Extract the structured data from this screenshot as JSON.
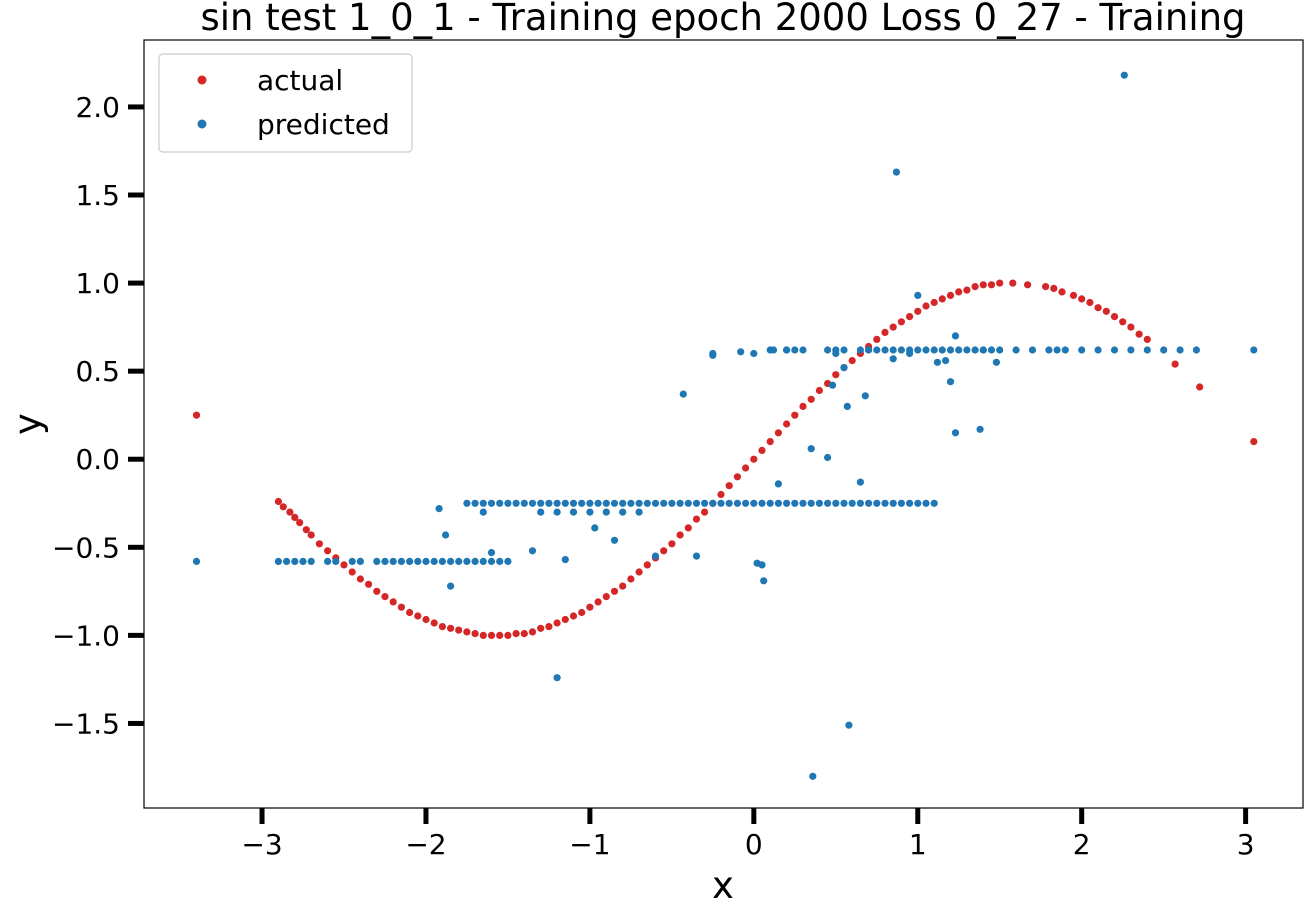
{
  "chart_data": {
    "type": "scatter",
    "title": "sin test 1_0_1 - Training epoch 2000 Loss 0_27 - Training",
    "xlabel": "x",
    "ylabel": "y",
    "xlim": [
      -3.72,
      3.35
    ],
    "ylim": [
      -1.98,
      2.38
    ],
    "xticks": [
      -3,
      -2,
      -1,
      0,
      1,
      2,
      3
    ],
    "xtick_labels": [
      "−3",
      "−2",
      "−1",
      "0",
      "1",
      "2",
      "3"
    ],
    "yticks": [
      2.0,
      1.5,
      1.0,
      0.5,
      0.0,
      -0.5,
      -1.0,
      -1.5
    ],
    "ytick_labels": [
      "2.0",
      "1.5",
      "1.0",
      "0.5",
      "0.0",
      "−0.5",
      "−1.0",
      "−1.5"
    ],
    "grid": false,
    "legend_position": "top-left",
    "series": [
      {
        "name": "actual",
        "color": "#d62728",
        "x": [
          -3.4,
          -2.9,
          -2.87,
          -2.83,
          -2.8,
          -2.77,
          -2.73,
          -2.7,
          -2.65,
          -2.6,
          -2.55,
          -2.5,
          -2.45,
          -2.4,
          -2.35,
          -2.3,
          -2.25,
          -2.2,
          -2.15,
          -2.1,
          -2.05,
          -2.0,
          -1.95,
          -1.9,
          -1.85,
          -1.8,
          -1.75,
          -1.7,
          -1.65,
          -1.6,
          -1.55,
          -1.5,
          -1.45,
          -1.4,
          -1.35,
          -1.3,
          -1.25,
          -1.2,
          -1.15,
          -1.1,
          -1.05,
          -1.0,
          -0.95,
          -0.9,
          -0.85,
          -0.8,
          -0.75,
          -0.7,
          -0.65,
          -0.6,
          -0.55,
          -0.5,
          -0.45,
          -0.4,
          -0.35,
          -0.3,
          -0.25,
          -0.2,
          -0.15,
          -0.1,
          -0.05,
          0.0,
          0.05,
          0.1,
          0.15,
          0.2,
          0.25,
          0.3,
          0.35,
          0.4,
          0.45,
          0.5,
          0.55,
          0.6,
          0.65,
          0.7,
          0.75,
          0.8,
          0.85,
          0.9,
          0.95,
          1.0,
          1.05,
          1.1,
          1.15,
          1.2,
          1.25,
          1.3,
          1.35,
          1.4,
          1.45,
          1.5,
          1.58,
          1.67,
          1.78,
          1.83,
          1.88,
          1.95,
          2.0,
          2.05,
          2.1,
          2.15,
          2.2,
          2.25,
          2.3,
          2.35,
          2.4,
          2.57,
          2.72,
          3.05
        ],
        "y": [
          0.25,
          -0.24,
          -0.27,
          -0.3,
          -0.33,
          -0.36,
          -0.4,
          -0.43,
          -0.48,
          -0.52,
          -0.56,
          -0.6,
          -0.64,
          -0.68,
          -0.71,
          -0.75,
          -0.78,
          -0.81,
          -0.84,
          -0.87,
          -0.89,
          -0.91,
          -0.93,
          -0.95,
          -0.96,
          -0.97,
          -0.98,
          -0.99,
          -1.0,
          -1.0,
          -1.0,
          -1.0,
          -0.99,
          -0.99,
          -0.98,
          -0.96,
          -0.95,
          -0.93,
          -0.91,
          -0.89,
          -0.87,
          -0.84,
          -0.81,
          -0.78,
          -0.75,
          -0.72,
          -0.68,
          -0.64,
          -0.6,
          -0.56,
          -0.52,
          -0.48,
          -0.43,
          -0.39,
          -0.34,
          -0.3,
          -0.25,
          -0.2,
          -0.15,
          -0.1,
          -0.05,
          0.0,
          0.05,
          0.1,
          0.15,
          0.2,
          0.25,
          0.3,
          0.34,
          0.39,
          0.43,
          0.48,
          0.52,
          0.56,
          0.6,
          0.64,
          0.68,
          0.72,
          0.75,
          0.78,
          0.81,
          0.84,
          0.87,
          0.89,
          0.91,
          0.93,
          0.95,
          0.96,
          0.98,
          0.99,
          0.99,
          1.0,
          1.0,
          0.99,
          0.98,
          0.97,
          0.95,
          0.93,
          0.91,
          0.89,
          0.86,
          0.84,
          0.81,
          0.78,
          0.75,
          0.71,
          0.68,
          0.54,
          0.41,
          0.1
        ]
      },
      {
        "name": "predicted",
        "color": "#1f77b4",
        "x": [
          -3.4,
          -2.9,
          -2.85,
          -2.8,
          -2.75,
          -2.7,
          -2.6,
          -2.55,
          -2.45,
          -2.4,
          -2.3,
          -2.25,
          -2.2,
          -2.15,
          -2.1,
          -2.05,
          -2.0,
          -1.95,
          -1.9,
          -1.85,
          -1.8,
          -1.75,
          -1.7,
          -1.65,
          -1.6,
          -1.55,
          -1.5,
          -1.92,
          -1.88,
          -1.85,
          -1.75,
          -1.7,
          -1.65,
          -1.6,
          -1.55,
          -1.5,
          -1.45,
          -1.4,
          -1.35,
          -1.3,
          -1.25,
          -1.2,
          -1.15,
          -1.1,
          -1.05,
          -1.0,
          -0.95,
          -0.9,
          -0.85,
          -0.8,
          -0.75,
          -0.7,
          -0.65,
          -0.6,
          -0.55,
          -0.5,
          -0.45,
          -0.4,
          -0.35,
          -0.3,
          -0.25,
          -0.2,
          -0.15,
          -0.1,
          -0.05,
          0.0,
          0.05,
          0.1,
          0.15,
          0.2,
          0.25,
          0.3,
          0.35,
          0.4,
          0.45,
          0.5,
          0.55,
          0.6,
          0.65,
          0.7,
          0.75,
          0.8,
          0.85,
          0.9,
          0.95,
          1.0,
          1.05,
          1.1,
          -1.3,
          -1.2,
          -1.1,
          -1.0,
          -0.9,
          -0.8,
          -0.7,
          -1.65,
          -1.6,
          -1.35,
          -1.15,
          -0.97,
          -0.85,
          -0.6,
          -0.35,
          0.05,
          0.15,
          0.35,
          0.45,
          0.65,
          -0.25,
          0.0,
          0.1,
          0.2,
          0.3,
          0.5,
          0.7,
          0.85,
          0.95,
          -1.2,
          -0.43,
          0.02,
          0.06,
          0.36,
          0.58,
          0.57,
          0.87,
          0.48,
          0.55,
          0.68,
          1.2,
          1.38,
          1.23,
          1.4,
          -0.25,
          -0.08,
          0.12,
          0.2,
          0.25,
          0.45,
          0.5,
          0.55,
          0.65,
          0.7,
          0.75,
          0.8,
          0.85,
          0.9,
          0.95,
          1.0,
          1.05,
          1.1,
          1.15,
          1.2,
          1.25,
          1.3,
          1.35,
          1.4,
          1.45,
          1.5,
          1.6,
          1.7,
          1.8,
          1.85,
          1.9,
          2.0,
          2.1,
          2.2,
          2.3,
          2.4,
          2.5,
          2.6,
          2.7,
          3.05,
          1.12,
          1.17,
          1.23,
          1.48,
          1.0,
          2.26
        ],
        "y": [
          -0.58,
          -0.58,
          -0.58,
          -0.58,
          -0.58,
          -0.58,
          -0.58,
          -0.58,
          -0.58,
          -0.58,
          -0.58,
          -0.58,
          -0.58,
          -0.58,
          -0.58,
          -0.58,
          -0.58,
          -0.58,
          -0.58,
          -0.58,
          -0.58,
          -0.58,
          -0.58,
          -0.58,
          -0.58,
          -0.58,
          -0.58,
          -0.28,
          -0.43,
          -0.72,
          -0.25,
          -0.25,
          -0.25,
          -0.25,
          -0.25,
          -0.25,
          -0.25,
          -0.25,
          -0.25,
          -0.25,
          -0.25,
          -0.25,
          -0.25,
          -0.25,
          -0.25,
          -0.25,
          -0.25,
          -0.25,
          -0.25,
          -0.25,
          -0.25,
          -0.25,
          -0.25,
          -0.25,
          -0.25,
          -0.25,
          -0.25,
          -0.25,
          -0.25,
          -0.25,
          -0.25,
          -0.25,
          -0.25,
          -0.25,
          -0.25,
          -0.25,
          -0.25,
          -0.25,
          -0.25,
          -0.25,
          -0.25,
          -0.25,
          -0.25,
          -0.25,
          -0.25,
          -0.25,
          -0.25,
          -0.25,
          -0.25,
          -0.25,
          -0.25,
          -0.25,
          -0.25,
          -0.25,
          -0.25,
          -0.25,
          -0.25,
          -0.25,
          -0.3,
          -0.3,
          -0.3,
          -0.3,
          -0.3,
          -0.3,
          -0.3,
          -0.3,
          -0.53,
          -0.52,
          -0.57,
          -0.39,
          -0.46,
          -0.55,
          -0.55,
          -0.6,
          -0.14,
          0.06,
          0.01,
          -0.13,
          0.6,
          0.6,
          0.62,
          0.62,
          0.62,
          0.6,
          0.62,
          0.57,
          0.6,
          -1.24,
          0.37,
          -0.59,
          -0.69,
          -1.8,
          -1.51,
          0.3,
          1.63,
          0.42,
          0.52,
          0.36,
          0.44,
          0.17,
          0.15,
          0.62,
          0.59,
          0.61,
          0.62,
          0.62,
          0.62,
          0.62,
          0.62,
          0.62,
          0.62,
          0.62,
          0.62,
          0.62,
          0.62,
          0.62,
          0.62,
          0.62,
          0.62,
          0.62,
          0.62,
          0.62,
          0.62,
          0.62,
          0.62,
          0.62,
          0.62,
          0.62,
          0.62,
          0.62,
          0.62,
          0.62,
          0.62,
          0.62,
          0.62,
          0.62,
          0.62,
          0.62,
          0.62,
          0.62,
          0.62,
          0.62,
          0.55,
          0.56,
          0.7,
          0.55,
          0.93,
          2.18
        ]
      }
    ]
  }
}
